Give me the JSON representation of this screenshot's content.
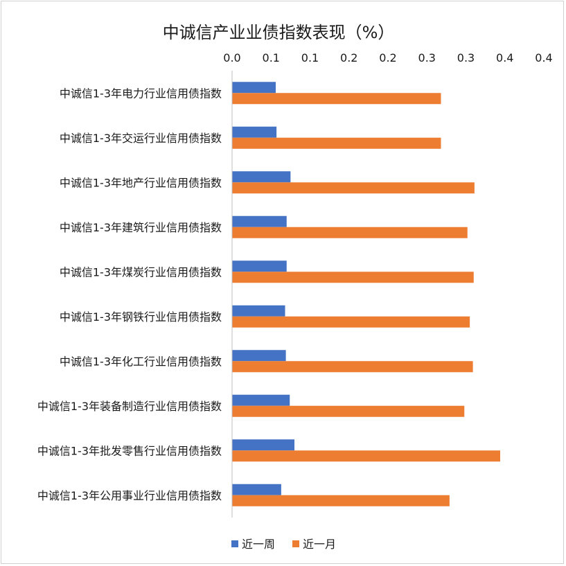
{
  "chart_data": {
    "type": "bar",
    "orientation": "horizontal",
    "title": "中诚信产业业债指数表现（%）",
    "x_tick_labels": [
      "0.0",
      "0.1",
      "0.1",
      "0.2",
      "0.2",
      "0.3",
      "0.3",
      "0.4",
      "0.4"
    ],
    "xlim": [
      0,
      0.4
    ],
    "x_axis_position": "top",
    "grid": false,
    "legend_position": "bottom",
    "categories": [
      "中诚信1-3年电力行业信用债指数",
      "中诚信1-3年交运行业信用债指数",
      "中诚信1-3年地产行业信用债指数",
      "中诚信1-3年建筑行业信用债指数",
      "中诚信1-3年煤炭行业信用债指数",
      "中诚信1-3年钢铁行业信用债指数",
      "中诚信1-3年化工行业信用债指数",
      "中诚信1-3年装备制造行业信用债指数",
      "中诚信1-3年批发零售行业信用债指数",
      "中诚信1-3年公用事业行业信用债指数"
    ],
    "series": [
      {
        "name": "近一周",
        "color": "#4472C4",
        "values": [
          0.056,
          0.057,
          0.075,
          0.07,
          0.07,
          0.068,
          0.069,
          0.074,
          0.08,
          0.063
        ]
      },
      {
        "name": "近一月",
        "color": "#ED7D31",
        "values": [
          0.268,
          0.268,
          0.311,
          0.302,
          0.31,
          0.305,
          0.309,
          0.298,
          0.344,
          0.279
        ]
      }
    ]
  }
}
